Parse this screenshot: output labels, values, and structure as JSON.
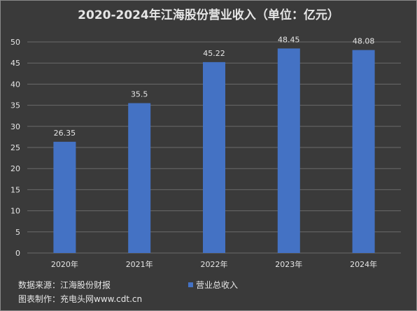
{
  "chart_data": {
    "type": "bar",
    "title": "2020-2024年江海股份营业收入（单位：亿元）",
    "categories": [
      "2020年",
      "2021年",
      "2022年",
      "2023年",
      "2024年"
    ],
    "series": [
      {
        "name": "营业总收入",
        "values": [
          26.35,
          35.5,
          45.22,
          48.45,
          48.08
        ]
      }
    ],
    "data_labels": [
      "26.35",
      "35.5",
      "45.22",
      "48.45",
      "48.08"
    ],
    "ylim": [
      0,
      50
    ],
    "yticks": [
      0,
      5,
      10,
      15,
      20,
      25,
      30,
      35,
      40,
      45,
      50
    ],
    "grid": true,
    "legend_position": "bottom",
    "colors": {
      "bar": "#4472c4",
      "background": "#3a3a3a",
      "grid": "#6a6a6a",
      "text": "#e6e6e6"
    }
  },
  "footer": {
    "source": "数据来源：江海股份财报",
    "maker": "图表制作：充电头网www.cdt.cn"
  }
}
